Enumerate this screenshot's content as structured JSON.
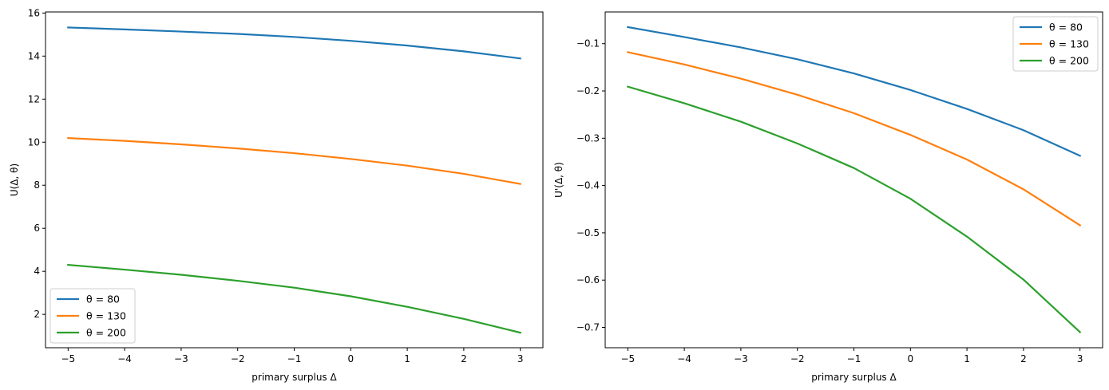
{
  "colors": {
    "theta80": "#1f77b4",
    "theta130": "#ff7f0e",
    "theta200": "#2ca02c"
  },
  "chart_data": [
    {
      "type": "line",
      "xlabel": "primary surplus Δ",
      "ylabel": "U(Δ, θ)",
      "xlim": [
        -5.4,
        3.4
      ],
      "ylim": [
        0.45,
        16.05
      ],
      "xticks": [
        -5,
        -4,
        -3,
        -2,
        -1,
        0,
        1,
        2,
        3
      ],
      "xtick_labels": [
        "−5",
        "−4",
        "−3",
        "−2",
        "−1",
        "0",
        "1",
        "2",
        "3"
      ],
      "yticks": [
        2,
        4,
        6,
        8,
        10,
        12,
        14,
        16
      ],
      "ytick_labels": [
        "2",
        "4",
        "6",
        "8",
        "10",
        "12",
        "14",
        "16"
      ],
      "legend_position": "lower-left",
      "x": [
        -5,
        -4,
        -3,
        -2,
        -1,
        0,
        1,
        2,
        3
      ],
      "series": [
        {
          "name": "θ = 80",
          "color": "#1f77b4",
          "values": [
            15.33,
            15.24,
            15.14,
            15.03,
            14.89,
            14.71,
            14.49,
            14.22,
            13.89
          ]
        },
        {
          "name": "θ = 130",
          "color": "#ff7f0e",
          "values": [
            10.19,
            10.06,
            9.9,
            9.71,
            9.49,
            9.22,
            8.91,
            8.53,
            8.06
          ]
        },
        {
          "name": "θ = 200",
          "color": "#2ca02c",
          "values": [
            4.3,
            4.08,
            3.84,
            3.56,
            3.24,
            2.84,
            2.35,
            1.79,
            1.15
          ]
        }
      ]
    },
    {
      "type": "line",
      "xlabel": "primary surplus Δ",
      "ylabel": "U'(Δ, θ)",
      "xlim": [
        -5.4,
        3.4
      ],
      "ylim": [
        -0.743,
        -0.033
      ],
      "xticks": [
        -5,
        -4,
        -3,
        -2,
        -1,
        0,
        1,
        2,
        3
      ],
      "xtick_labels": [
        "−5",
        "−4",
        "−3",
        "−2",
        "−1",
        "0",
        "1",
        "2",
        "3"
      ],
      "yticks": [
        -0.1,
        -0.2,
        -0.3,
        -0.4,
        -0.5,
        -0.6,
        -0.7
      ],
      "ytick_labels": [
        "−0.1",
        "−0.2",
        "−0.3",
        "−0.4",
        "−0.5",
        "−0.6",
        "−0.7"
      ],
      "legend_position": "upper-right",
      "x": [
        -5,
        -4,
        -3,
        -2,
        -1,
        0,
        1,
        2,
        3
      ],
      "series": [
        {
          "name": "θ = 80",
          "color": "#1f77b4",
          "values": [
            -0.065,
            -0.086,
            -0.108,
            -0.133,
            -0.163,
            -0.198,
            -0.238,
            -0.283,
            -0.337
          ]
        },
        {
          "name": "θ = 130",
          "color": "#ff7f0e",
          "values": [
            -0.118,
            -0.144,
            -0.174,
            -0.208,
            -0.247,
            -0.293,
            -0.345,
            -0.408,
            -0.484
          ]
        },
        {
          "name": "θ = 200",
          "color": "#2ca02c",
          "values": [
            -0.191,
            -0.226,
            -0.265,
            -0.311,
            -0.363,
            -0.428,
            -0.508,
            -0.599,
            -0.71
          ]
        }
      ]
    }
  ]
}
